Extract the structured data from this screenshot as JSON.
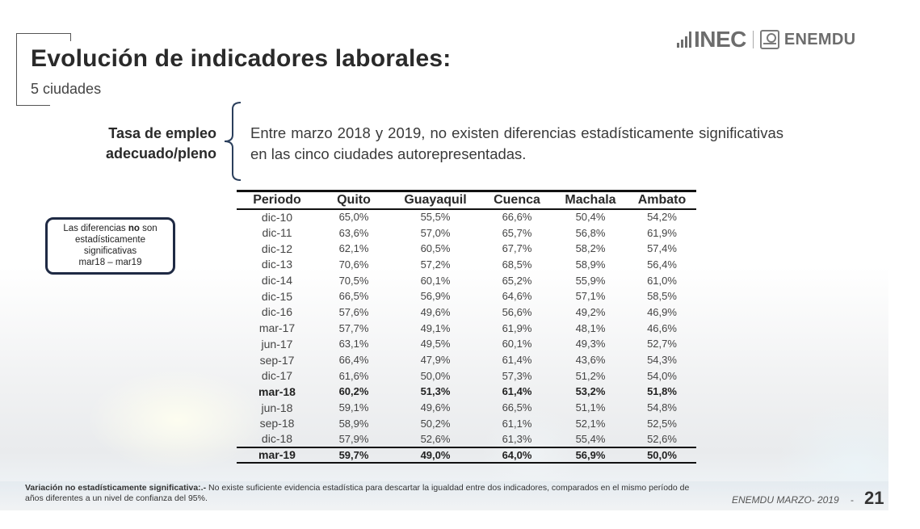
{
  "header": {
    "title": "Evolución de indicadores laborales:",
    "subtitle": "5 ciudades",
    "logo": {
      "brand": "INEC",
      "survey": "ENEMDU",
      "icons": [
        "signal-bars-icon",
        "emblem-icon"
      ]
    }
  },
  "indicator": {
    "label_line1": "Tasa de empleo",
    "label_line2": "adecuado/pleno",
    "description": "Entre marzo 2018 y 2019, no existen diferencias estadísticamente significativas en las cinco ciudades autorepresentadas."
  },
  "note_box": {
    "text_before": "Las diferencias ",
    "text_bold": "no",
    "text_after": " son",
    "line2": "estadísticamente",
    "line3": "significativas",
    "line4": "mar18 – mar19"
  },
  "table": {
    "headers": [
      "Periodo",
      "Quito",
      "Guayaquil",
      "Cuenca",
      "Machala",
      "Ambato"
    ],
    "rows": [
      {
        "period": "dic-10",
        "values": [
          "65,0%",
          "55,5%",
          "66,6%",
          "50,4%",
          "54,2%"
        ],
        "bold": false
      },
      {
        "period": "dic-11",
        "values": [
          "63,6%",
          "57,0%",
          "65,7%",
          "56,8%",
          "61,9%"
        ],
        "bold": false
      },
      {
        "period": "dic-12",
        "values": [
          "62,1%",
          "60,5%",
          "67,7%",
          "58,2%",
          "57,4%"
        ],
        "bold": false
      },
      {
        "period": "dic-13",
        "values": [
          "70,6%",
          "57,2%",
          "68,5%",
          "58,9%",
          "56,4%"
        ],
        "bold": false
      },
      {
        "period": "dic-14",
        "values": [
          "70,5%",
          "60,1%",
          "65,2%",
          "55,9%",
          "61,0%"
        ],
        "bold": false
      },
      {
        "period": "dic-15",
        "values": [
          "66,5%",
          "56,9%",
          "64,6%",
          "57,1%",
          "58,5%"
        ],
        "bold": false
      },
      {
        "period": "dic-16",
        "values": [
          "57,6%",
          "49,6%",
          "56,6%",
          "49,2%",
          "46,9%"
        ],
        "bold": false
      },
      {
        "period": "mar-17",
        "values": [
          "57,7%",
          "49,1%",
          "61,9%",
          "48,1%",
          "46,6%"
        ],
        "bold": false
      },
      {
        "period": "jun-17",
        "values": [
          "63,1%",
          "49,5%",
          "60,1%",
          "49,3%",
          "52,7%"
        ],
        "bold": false
      },
      {
        "period": "sep-17",
        "values": [
          "66,4%",
          "47,9%",
          "61,4%",
          "43,6%",
          "54,3%"
        ],
        "bold": false
      },
      {
        "period": "dic-17",
        "values": [
          "61,6%",
          "50,0%",
          "57,3%",
          "51,2%",
          "54,0%"
        ],
        "bold": false
      },
      {
        "period": "mar-18",
        "values": [
          "60,2%",
          "51,3%",
          "61,4%",
          "53,2%",
          "51,8%"
        ],
        "bold": true
      },
      {
        "period": "jun-18",
        "values": [
          "59,1%",
          "49,6%",
          "66,5%",
          "51,1%",
          "54,8%"
        ],
        "bold": false
      },
      {
        "period": "sep-18",
        "values": [
          "58,9%",
          "50,2%",
          "61,1%",
          "52,1%",
          "52,5%"
        ],
        "bold": false
      },
      {
        "period": "dic-18",
        "values": [
          "57,9%",
          "52,6%",
          "61,3%",
          "55,4%",
          "52,6%"
        ],
        "bold": false
      },
      {
        "period": "mar-19",
        "values": [
          "59,7%",
          "49,0%",
          "64,0%",
          "56,9%",
          "50,0%"
        ],
        "bold": true
      }
    ]
  },
  "footer": {
    "footnote_bold": "Variación no estadísticamente significativa:.-",
    "footnote_text": " No existe suficiente evidencia estadística para descartar la igualdad entre dos indicadores, comparados en el mismo período de años diferentes a un nivel de confianza del 95%.",
    "source_label": "ENEMDU MARZO- 2019",
    "separator": "-",
    "page_number": "21"
  },
  "colors": {
    "navy": "#1f2a44",
    "bracket": "#2b3f5c",
    "logo_gray": "#6d6d6d",
    "text_dark": "#2a2a2a"
  }
}
